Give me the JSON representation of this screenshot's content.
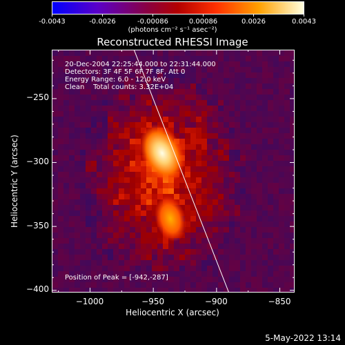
{
  "colorbar": {
    "ticks": [
      "-0.0043",
      "-0.0026",
      "-0.00086",
      "0.00086",
      "0.0026",
      "0.0043"
    ],
    "unit_label": "(photons cm⁻² s⁻¹ asec⁻²)",
    "min": -0.0043,
    "max": 0.0043
  },
  "annotations": {
    "line1": "20-Dec-2004 22:25:44.000 to 22:31:44.000",
    "line2": "Detectors: 3F 4F 5F 6F 7F 8F, Att 0",
    "line3": "Energy Range: 6.0 - 12.0 keV",
    "line4": "Clean    Total counts: 3.32E+04",
    "peak": "Position of Peak = [-942,-287]"
  },
  "footer": {
    "date": "5-May-2022 13:14"
  },
  "chart_data": {
    "type": "heatmap",
    "title": "Reconstructed RHESSI Image",
    "xlabel": "Heliocentric X (arcsec)",
    "ylabel": "Heliocentric Y (arcsec)",
    "xlim": [
      -1030,
      -838
    ],
    "ylim": [
      -402,
      -212
    ],
    "x_ticks": [
      -1000,
      -950,
      -900,
      -850
    ],
    "y_ticks": [
      -400,
      -350,
      -300,
      -250
    ],
    "x_tick_labels": [
      "−1000",
      "−950",
      "−900",
      "−850"
    ],
    "y_tick_labels": [
      "−400",
      "−350",
      "−300",
      "−250"
    ],
    "peak": {
      "x": -942,
      "y": -287
    },
    "limb_line": [
      [
        -965,
        -212
      ],
      [
        -890,
        -402
      ]
    ]
  }
}
